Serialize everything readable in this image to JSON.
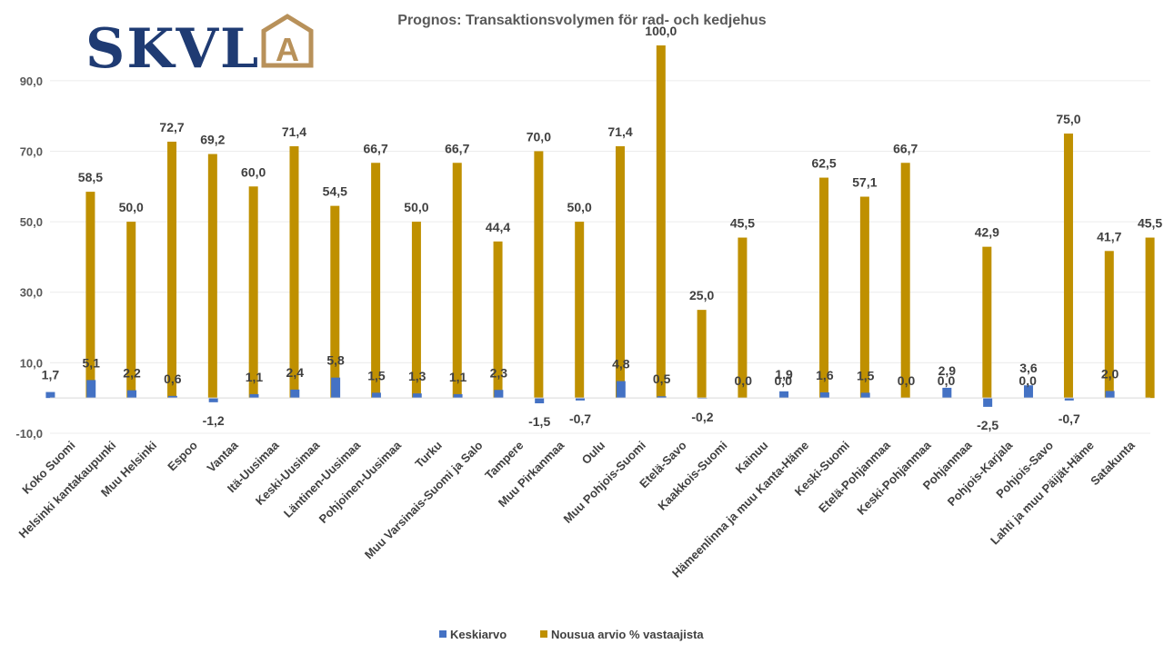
{
  "logo": {
    "text": "SKVL",
    "mark_letter": "A",
    "text_color": "#1f3b73",
    "mark_color": "#b8915a"
  },
  "colors": {
    "keskiarvo": "#4472c4",
    "nousua": "#bf9000",
    "axis": "#d9d9d9"
  },
  "chart_data": {
    "type": "bar",
    "title": "Prognos: Transaktionsvolymen för rad- och kedjehus",
    "xlabel": "",
    "ylabel": "",
    "ylim": [
      -10,
      100
    ],
    "yticks": [
      -10,
      10,
      30,
      50,
      70,
      90
    ],
    "ytick_labels": [
      "-10,0",
      "10,0",
      "30,0",
      "50,0",
      "70,0",
      "90,0"
    ],
    "legend_position": "bottom",
    "categories": [
      "Koko Suomi",
      "Helsinki kantakaupunki",
      "Muu Helsinki",
      "Espoo",
      "Vantaa",
      "Itä-Uusimaa",
      "Keski-Uusimaa",
      "Läntinen-Uusimaa",
      "Pohjoinen-Uusimaa",
      "Turku",
      "Muu Varsinais-Suomi ja Salo",
      "Tampere",
      "Muu Pirkanmaa",
      "Oulu",
      "Muu Pohjois-Suomi",
      "Etelä-Savo",
      "Kaakkois-Suomi",
      "Kainuu",
      "Hämeenlinna ja muu Kanta-Häme",
      "Keski-Suomi",
      "Etelä-Pohjanmaa",
      "Keski-Pohjanmaa",
      "Pohjanmaa",
      "Pohjois-Karjala",
      "Pohjois-Savo",
      "Lahti ja muu Päijät-Häme",
      "Satakunta"
    ],
    "series": [
      {
        "name": "Keskiarvo",
        "values": [
          1.7,
          5.1,
          2.2,
          0.6,
          -1.2,
          1.1,
          2.4,
          5.8,
          1.5,
          1.3,
          1.1,
          2.3,
          -1.5,
          -0.7,
          4.8,
          0.5,
          -0.2,
          0.0,
          1.9,
          1.6,
          1.5,
          0.0,
          2.9,
          -2.5,
          3.6,
          -0.7,
          2.0
        ],
        "labels": [
          "1,7",
          "5,1",
          "2,2",
          "0,6",
          "-1,2",
          "1,1",
          "2,4",
          "5,8",
          "1,5",
          "1,3",
          "1,1",
          "2,3",
          "-1,5",
          "-0,7",
          "4,8",
          "0,5",
          "-0,2",
          "0,0",
          "1,9",
          "1,6",
          "1,5",
          "0,0",
          "2,9",
          "-2,5",
          "3,6",
          "-0,7",
          "2,0"
        ]
      },
      {
        "name": "Nousua arvio % vastaajista",
        "values": [
          58.5,
          50.0,
          72.7,
          69.2,
          60.0,
          71.4,
          54.5,
          66.7,
          50.0,
          66.7,
          44.4,
          70.0,
          50.0,
          71.4,
          100.0,
          25.0,
          45.5,
          0.0,
          62.5,
          57.1,
          66.7,
          0.0,
          42.9,
          0.0,
          75.0,
          41.7,
          45.5
        ],
        "labels": [
          "58,5",
          "50,0",
          "72,7",
          "69,2",
          "60,0",
          "71,4",
          "54,5",
          "66,7",
          "50,0",
          "66,7",
          "44,4",
          "70,0",
          "50,0",
          "71,4",
          "100,0",
          "25,0",
          "45,5",
          "0,0",
          "62,5",
          "57,1",
          "66,7",
          "0,0",
          "42,9",
          "0,0",
          "75,0",
          "41,7",
          "45,5"
        ]
      }
    ]
  }
}
